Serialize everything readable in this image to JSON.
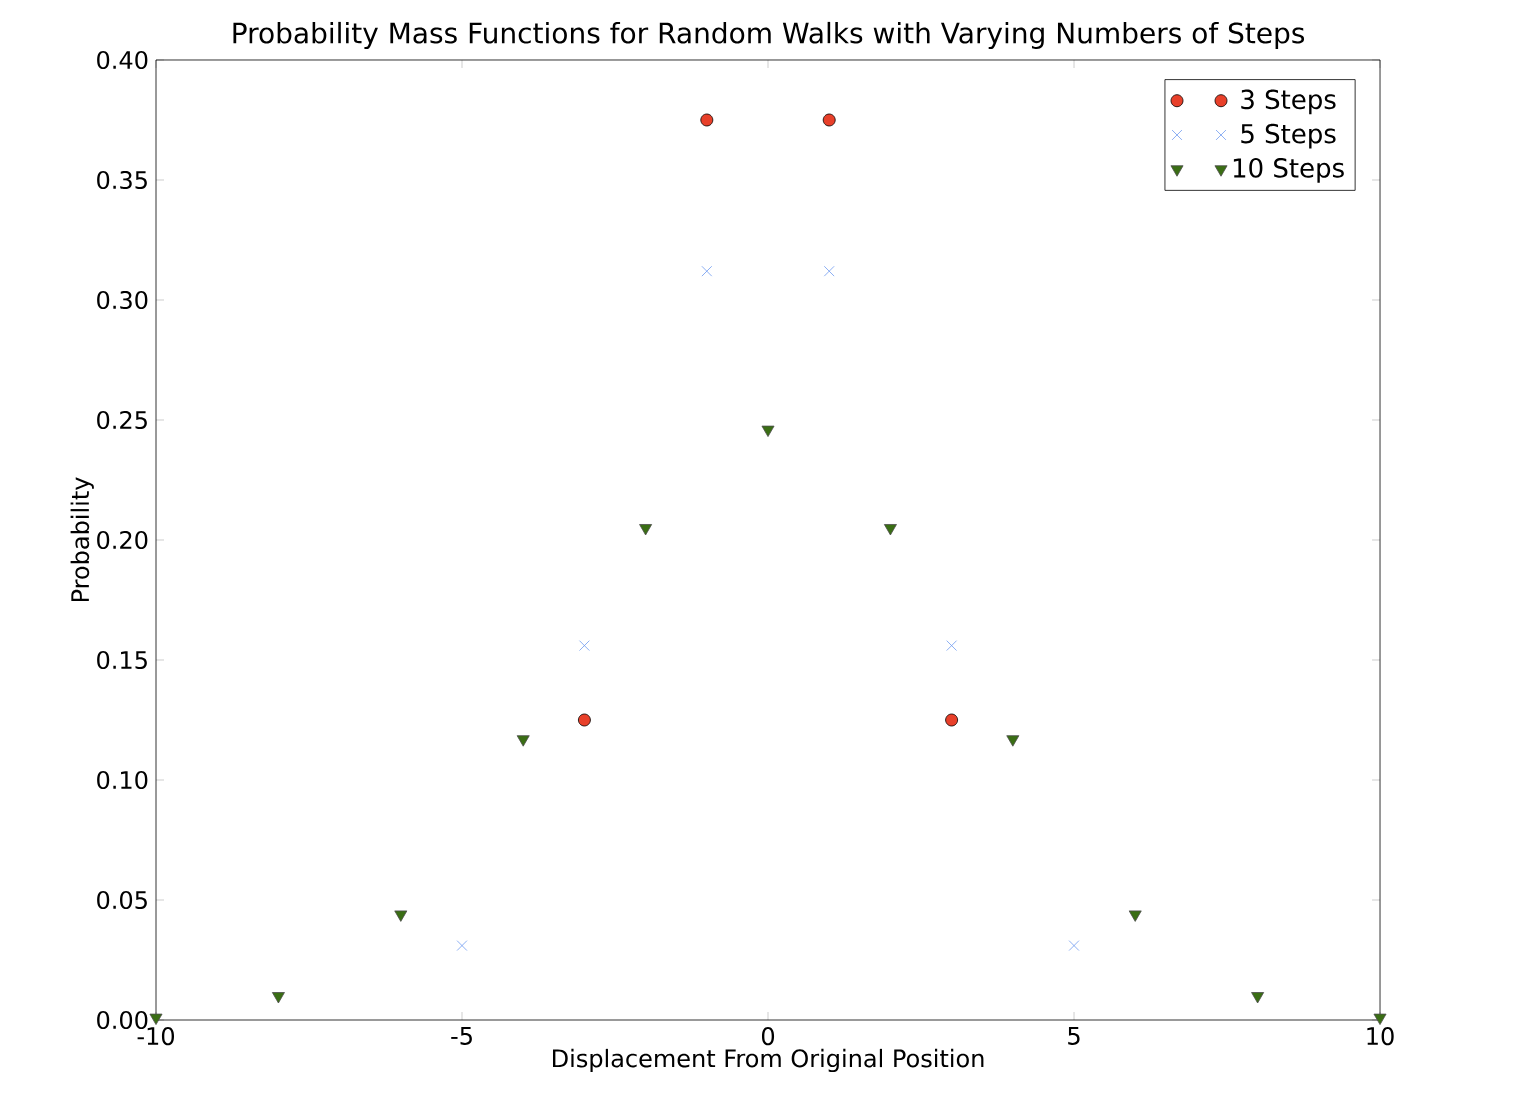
{
  "chart_data": {
    "type": "scatter",
    "title": "Probability Mass Functions for Random Walks with Varying Numbers of Steps",
    "xlabel": "Displacement From Original Position",
    "ylabel": "Probability",
    "series": [
      {
        "name": "3 Steps",
        "color": "#e8402a",
        "marker": "circle",
        "x": [
          -3,
          -1,
          1,
          3
        ],
        "values": [
          0.125,
          0.375,
          0.375,
          0.125
        ]
      },
      {
        "name": "5 Steps",
        "color": "#6f9af0",
        "marker": "cross",
        "x": [
          -5,
          -3,
          -1,
          1,
          3,
          5
        ],
        "values": [
          0.031,
          0.156,
          0.312,
          0.312,
          0.156,
          0.031
        ]
      },
      {
        "name": "10 Steps",
        "color": "#3a6e14",
        "marker": "triangle",
        "x": [
          -10,
          -8,
          -6,
          -4,
          -2,
          0,
          2,
          4,
          6,
          8,
          10
        ],
        "values": [
          0.001,
          0.01,
          0.044,
          0.117,
          0.205,
          0.246,
          0.205,
          0.117,
          0.044,
          0.01,
          0.001
        ]
      }
    ],
    "xlim": [
      -10,
      10
    ],
    "ylim": [
      0,
      0.4
    ],
    "xticks": [
      -10,
      -5,
      0,
      5,
      10
    ],
    "yticks": [
      {
        "value": 0,
        "label": "0.00"
      },
      {
        "value": 0.05,
        "label": "0.05"
      },
      {
        "value": 0.1,
        "label": "0.10"
      },
      {
        "value": 0.15,
        "label": "0.15"
      },
      {
        "value": 0.2,
        "label": "0.20"
      },
      {
        "value": 0.25,
        "label": "0.25"
      },
      {
        "value": 0.3,
        "label": "0.30"
      },
      {
        "value": 0.35,
        "label": "0.35"
      },
      {
        "value": 0.4,
        "label": "0.40"
      }
    ],
    "grid": false,
    "legend": "top right"
  }
}
